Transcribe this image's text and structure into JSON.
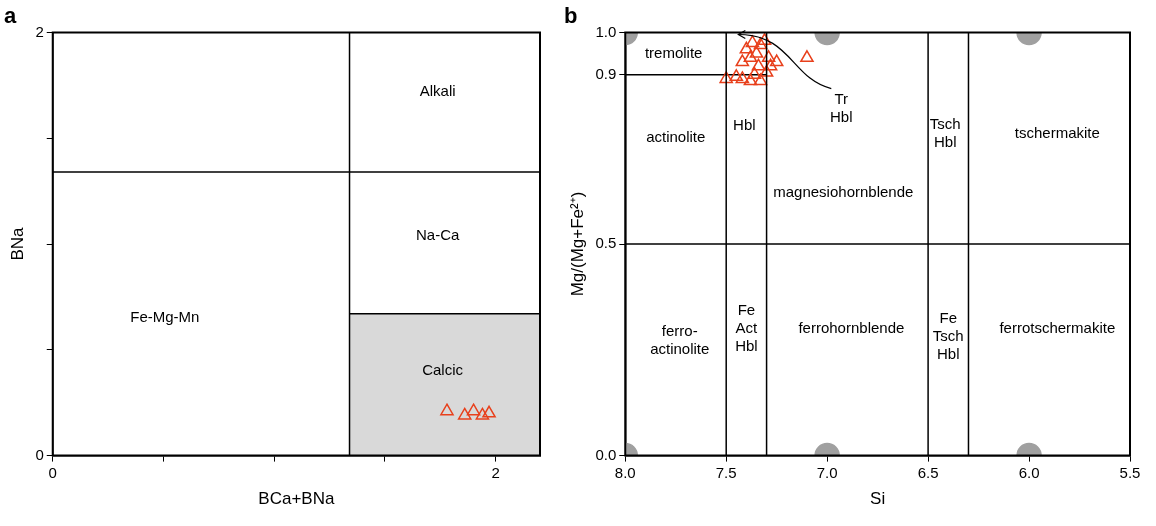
{
  "chart_data": [
    {
      "type": "scatter",
      "title": "a",
      "xlabel": "BCa+BNa",
      "ylabel": "BNa",
      "xlim": [
        0,
        2.2
      ],
      "ylim": [
        0,
        2
      ],
      "xticks": [
        0,
        {
          "value": 0.5,
          "label": null
        },
        {
          "value": 1,
          "label": null
        },
        {
          "value": 1.5,
          "label": null
        },
        2
      ],
      "yticks": [
        0,
        {
          "value": 0.5,
          "label": null
        },
        {
          "value": 1,
          "label": null
        },
        {
          "value": 1.5,
          "label": null
        },
        2
      ],
      "series": [
        {
          "type": "area",
          "color": "#d9d9d9",
          "x": [
            1.34,
            2.2
          ],
          "values": [
            0.67,
            0.67
          ]
        },
        {
          "color": "#e8401c",
          "marker": "triangle",
          "x": [
            1.78,
            1.86,
            1.9,
            1.94,
            1.97
          ],
          "values": [
            0.21,
            0.19,
            0.21,
            0.19,
            0.2
          ]
        }
      ],
      "ref_lines": [
        {
          "axis": "x",
          "value": 1.34,
          "color": "#000000"
        },
        {
          "axis": "y",
          "value": 1.34,
          "color": "#000000"
        }
      ],
      "annotations": [
        "Alkali",
        "Na-Ca",
        "Calcic",
        "Fe-Mg-Mn"
      ]
    },
    {
      "type": "scatter",
      "title": "b",
      "xlabel": "Si",
      "ylabel": "Mg/(Mg+Fe²⁺)",
      "xlim": [
        8.0,
        5.5
      ],
      "ylim": [
        0,
        1.0
      ],
      "xticks": [
        {
          "value": 8,
          "label": "8.0"
        },
        7.5,
        {
          "value": 7,
          "label": "7.0"
        },
        6.5,
        {
          "value": 6,
          "label": "6.0"
        },
        5.5
      ],
      "yticks": [
        {
          "value": 0,
          "label": "0.0"
        },
        0.5,
        0.9,
        {
          "value": 1,
          "label": "1.0"
        }
      ],
      "series": [
        {
          "color": "#a0a0a0",
          "marker": "circle",
          "x": [
            8,
            7,
            6,
            8,
            7,
            6
          ],
          "values": [
            1,
            1,
            1,
            0,
            0,
            0
          ]
        },
        {
          "type": "line",
          "color": "#000000",
          "x": [
            8.0,
            7.3
          ],
          "values": [
            0.9,
            0.9
          ]
        },
        {
          "color": "#e8401c",
          "marker": "triangle",
          "x": [
            7.5,
            7.45,
            7.42,
            7.38,
            7.33,
            7.36,
            7.3,
            7.28,
            7.25,
            7.38,
            7.35,
            7.4,
            7.33,
            7.37,
            7.31,
            7.42,
            7.29,
            7.34,
            7.1
          ],
          "values": [
            0.89,
            0.895,
            0.89,
            0.885,
            0.885,
            0.9,
            0.905,
            0.92,
            0.93,
            0.94,
            0.95,
            0.96,
            0.97,
            0.975,
            0.98,
            0.93,
            0.94,
            0.92,
            0.94
          ]
        }
      ],
      "ref_lines": [
        {
          "axis": "x",
          "value": 7.5,
          "color": "#000000"
        },
        {
          "axis": "x",
          "value": 7.3,
          "color": "#000000"
        },
        {
          "axis": "x",
          "value": 6.5,
          "color": "#000000"
        },
        {
          "axis": "x",
          "value": 6.3,
          "color": "#000000"
        },
        {
          "axis": "y",
          "value": 0.5,
          "color": "#000000"
        }
      ],
      "annotations": [
        "tremolite",
        "actinolite",
        "Hbl",
        "magnesiohornblende",
        "Tsch\nHbl",
        "tschermakite",
        "ferro-\nactinolite",
        "Fe\nAct\nHbl",
        "ferrohornblende",
        "Fe\nTsch\nHbl",
        "ferrotschermakite",
        "Tr\nHbl"
      ]
    }
  ]
}
